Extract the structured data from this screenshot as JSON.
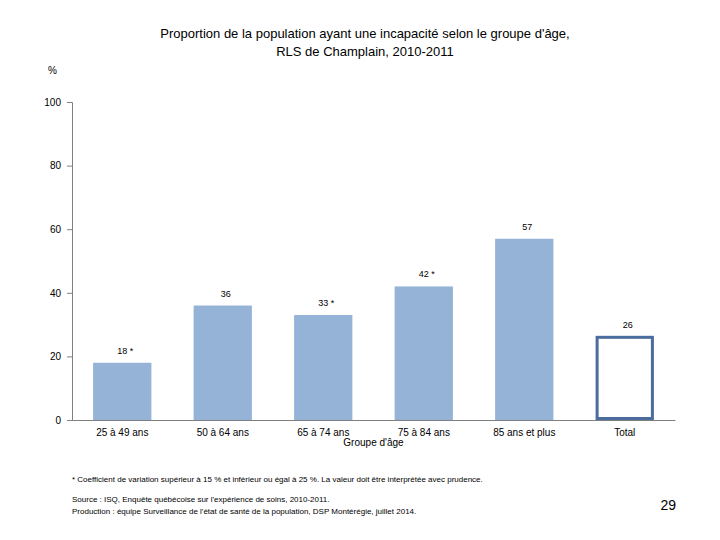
{
  "chart_data": {
    "type": "bar",
    "title": "Proportion de la population ayant une incapacité selon le  groupe d'âge,\nRLS de Champlain, 2010-2011",
    "y_label": "%",
    "x_label": "Groupe d'âge",
    "categories": [
      "25 à 49 ans",
      "50 à 64 ans",
      "65 à 74 ans",
      "75 à 84 ans",
      "85 ans et plus",
      "Total"
    ],
    "values": [
      18,
      36,
      33,
      42,
      57,
      26
    ],
    "value_labels": [
      "18 *",
      "36",
      "33 *",
      "42 *",
      "57",
      "26"
    ],
    "colors": [
      "#95b3d7",
      "#95b3d7",
      "#95b3d7",
      "#95b3d7",
      "#95b3d7",
      "#ffffff"
    ],
    "data_labels": true,
    "grid": false,
    "ylim": [
      0,
      100
    ],
    "yticks": [
      0,
      20,
      40,
      60,
      80,
      100
    ],
    "annotations": [
      "* Coefficient de variation supérieur à 15 % et inférieur ou égal à 25 %. La valeur doit être interprétée avec prudence.",
      "Source : ISQ, Enquête québécoise sur l'expérience de soins, 2010-2011.",
      "Production : équipe Surveillance de l'état de santé de la population, DSP Montérégie, juillet 2014.",
      "29"
    ]
  }
}
